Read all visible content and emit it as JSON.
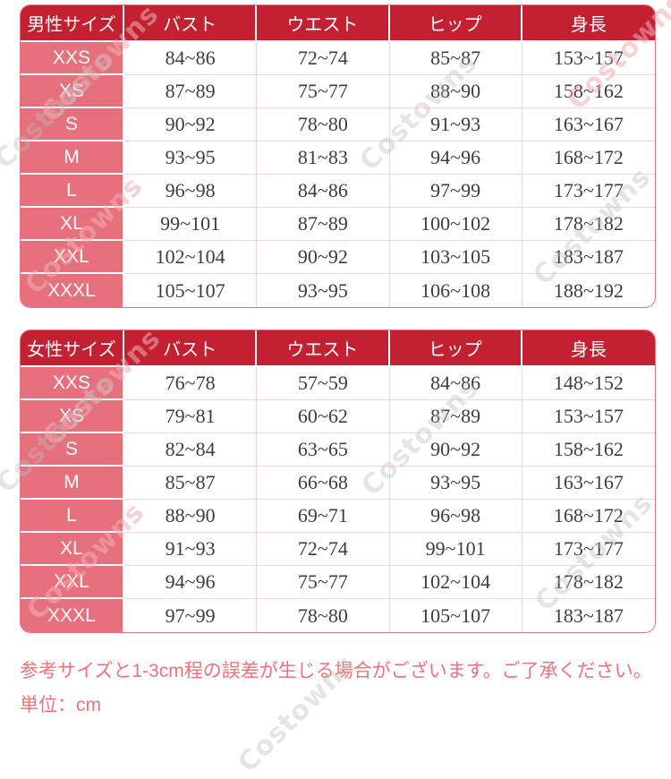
{
  "watermark": {
    "text": "Costowns"
  },
  "colors": {
    "header_bg": "#c32132",
    "size_col_bg": "#e7707d",
    "outer_border": "#e0737f",
    "cell_line": "#f3d4d8",
    "note_text": "#f0717d",
    "data_text": "#3d3d3d"
  },
  "tables": [
    {
      "name": "mens",
      "headers": [
        "男性サイズ",
        "バスト",
        "ウエスト",
        "ヒップ",
        "身長"
      ],
      "rows": [
        [
          "XXS",
          "84~86",
          "72~74",
          "85~87",
          "153~157"
        ],
        [
          "XS",
          "87~89",
          "75~77",
          "88~90",
          "158~162"
        ],
        [
          "S",
          "90~92",
          "78~80",
          "91~93",
          "163~167"
        ],
        [
          "M",
          "93~95",
          "81~83",
          "94~96",
          "168~172"
        ],
        [
          "L",
          "96~98",
          "84~86",
          "97~99",
          "173~177"
        ],
        [
          "XL",
          "99~101",
          "87~89",
          "100~102",
          "178~182"
        ],
        [
          "XXL",
          "102~104",
          "90~92",
          "103~105",
          "183~187"
        ],
        [
          "XXXL",
          "105~107",
          "93~95",
          "106~108",
          "188~192"
        ]
      ]
    },
    {
      "name": "womens",
      "headers": [
        "女性サイズ",
        "バスト",
        "ウエスト",
        "ヒップ",
        "身長"
      ],
      "rows": [
        [
          "XXS",
          "76~78",
          "57~59",
          "84~86",
          "148~152"
        ],
        [
          "XS",
          "79~81",
          "60~62",
          "87~89",
          "153~157"
        ],
        [
          "S",
          "82~84",
          "63~65",
          "90~92",
          "158~162"
        ],
        [
          "M",
          "85~87",
          "66~68",
          "93~95",
          "163~167"
        ],
        [
          "L",
          "88~90",
          "69~71",
          "96~98",
          "168~172"
        ],
        [
          "XL",
          "91~93",
          "72~74",
          "99~101",
          "173~177"
        ],
        [
          "XXL",
          "94~96",
          "75~77",
          "102~104",
          "178~182"
        ],
        [
          "XXXL",
          "97~99",
          "78~80",
          "105~107",
          "183~187"
        ]
      ]
    }
  ],
  "notes": {
    "tolerance": "参考サイズと1-3cm程の誤差が生じる場合がございます。ご了承ください。",
    "unit": "単位：cm"
  }
}
